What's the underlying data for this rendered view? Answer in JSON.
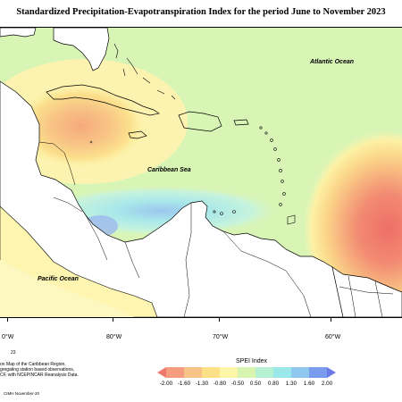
{
  "title": "Standardized Precipitation-Evapotranspiration Index for the period June to November 2023",
  "labels": {
    "atlantic": "Atlantic Ocean",
    "caribbean": "Caribbean Sea",
    "pacific": "Pacific Ocean"
  },
  "longitudes": [
    "0°W",
    "80°W",
    "70°W",
    "60°W"
  ],
  "description": [
    "23",
    "on Map of the Caribbean Region.",
    "gregating station based observations,",
    "CF, with NCEP/NCAR Reanalysis Data."
  ],
  "legend": {
    "title": "SPEI Index",
    "ticks": [
      "-2.00",
      "-1.60",
      "-1.30",
      "-0.80",
      "-0.50",
      "0.50",
      "0.80",
      "1.30",
      "1.60",
      "2.00"
    ],
    "colors": [
      "#ef7a6b",
      "#f59d7e",
      "#f8c386",
      "#fbe088",
      "#fdf5a8",
      "#d7f5b0",
      "#b5f0d0",
      "#9be8ea",
      "#8fc8ef",
      "#7a9cef",
      "#6a7be8"
    ]
  },
  "footer": "CIMH November-20"
}
